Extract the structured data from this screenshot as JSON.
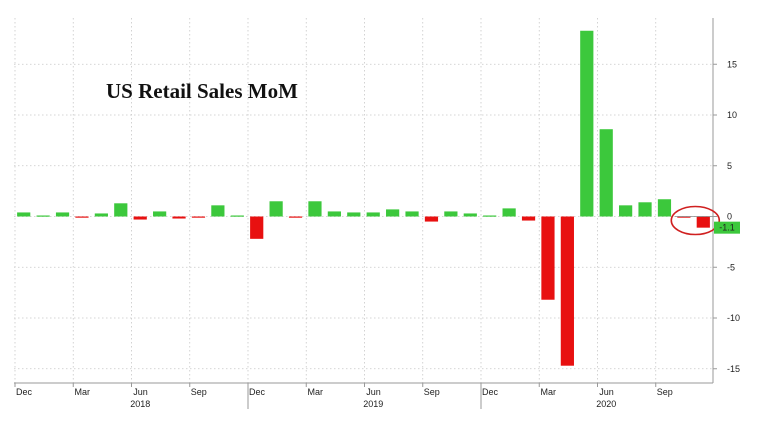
{
  "chart_data": {
    "type": "bar",
    "title": "US Retail Sales MoM",
    "xlabel": "",
    "ylabel": "",
    "ylim": [
      -15.5,
      19.5
    ],
    "y_ticks": [
      15,
      10,
      5,
      0,
      -5,
      -10,
      -15
    ],
    "y_axis_position": "right",
    "grid": true,
    "positive_color": "#3cc83c",
    "negative_color": "#e81010",
    "last_value_label": "-1.1",
    "last_value_label_color": "#3cc83c",
    "highlight_circle_color": "#d02020",
    "x_tick_labels": [
      {
        "index": 0,
        "label": "Dec"
      },
      {
        "index": 3,
        "label": "Mar"
      },
      {
        "index": 6,
        "label": "Jun"
      },
      {
        "index": 9,
        "label": "Sep"
      },
      {
        "index": 12,
        "label": "Dec"
      },
      {
        "index": 15,
        "label": "Mar"
      },
      {
        "index": 18,
        "label": "Jun"
      },
      {
        "index": 21,
        "label": "Sep"
      },
      {
        "index": 24,
        "label": "Dec"
      },
      {
        "index": 27,
        "label": "Mar"
      },
      {
        "index": 30,
        "label": "Jun"
      },
      {
        "index": 33,
        "label": "Sep"
      }
    ],
    "year_labels": [
      {
        "index": 6,
        "label": "2018"
      },
      {
        "index": 18,
        "label": "2019"
      },
      {
        "index": 30,
        "label": "2020"
      }
    ],
    "categories": [
      "Dec 2017",
      "Jan 2018",
      "Feb 2018",
      "Mar 2018",
      "Apr 2018",
      "May 2018",
      "Jun 2018",
      "Jul 2018",
      "Aug 2018",
      "Sep 2018",
      "Oct 2018",
      "Nov 2018",
      "Dec 2018",
      "Jan 2019",
      "Feb 2019",
      "Mar 2019",
      "Apr 2019",
      "May 2019",
      "Jun 2019",
      "Jul 2019",
      "Aug 2019",
      "Sep 2019",
      "Oct 2019",
      "Nov 2019",
      "Dec 2019",
      "Jan 2020",
      "Feb 2020",
      "Mar 2020",
      "Apr 2020",
      "May 2020",
      "Jun 2020",
      "Jul 2020",
      "Aug 2020",
      "Sep 2020",
      "Oct 2020",
      "Nov 2020"
    ],
    "values": [
      0.4,
      0.1,
      0.4,
      -0.1,
      0.3,
      1.3,
      -0.3,
      0.5,
      -0.2,
      -0.1,
      1.1,
      0.1,
      -2.2,
      1.5,
      -0.1,
      1.5,
      0.5,
      0.4,
      0.4,
      0.7,
      0.5,
      -0.5,
      0.5,
      0.3,
      0.1,
      0.8,
      -0.4,
      -8.2,
      -14.7,
      18.3,
      8.6,
      1.1,
      1.4,
      1.7,
      -0.1,
      -1.1
    ]
  }
}
